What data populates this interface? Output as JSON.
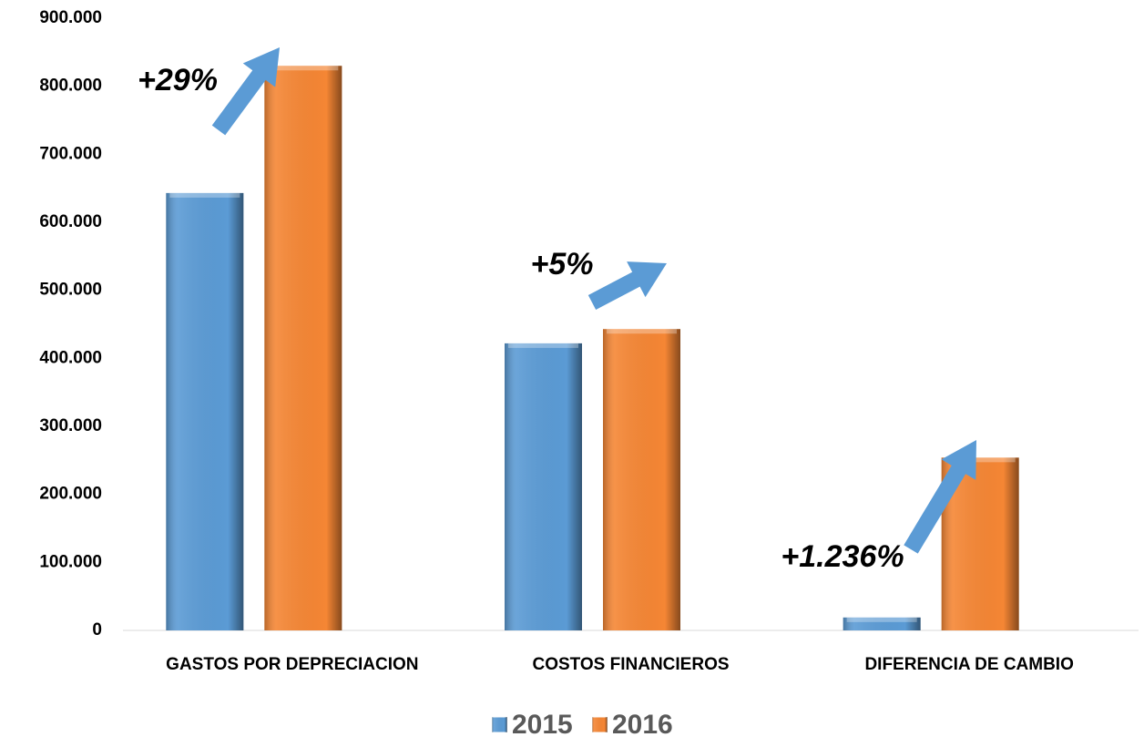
{
  "chart_data": {
    "type": "bar",
    "categories": [
      "GASTOS POR DEPRECIACION",
      "COSTOS FINANCIEROS",
      "DIFERENCIA DE CAMBIO"
    ],
    "series": [
      {
        "name": "2015",
        "color": "#5b9bd5",
        "values": [
          643000,
          422000,
          19000
        ]
      },
      {
        "name": "2016",
        "color": "#f58634",
        "values": [
          830000,
          443000,
          254000
        ]
      }
    ],
    "ylim": [
      0,
      900000
    ],
    "yticks": [
      0,
      {
        "value": 100000,
        "label": "100.000"
      },
      {
        "value": 200000,
        "label": "200.000"
      },
      {
        "value": 300000,
        "label": "300.000"
      },
      {
        "value": 400000,
        "label": "400.000"
      },
      {
        "value": 500000,
        "label": "500.000"
      },
      {
        "value": 600000,
        "label": "600.000"
      },
      {
        "value": 700000,
        "label": "700.000"
      },
      {
        "value": 800000,
        "label": "800.000"
      },
      {
        "value": 900000,
        "label": "900.000"
      }
    ],
    "annotations": [
      "+29%",
      "+5%",
      "+1.236%"
    ],
    "legend": "bottom"
  }
}
